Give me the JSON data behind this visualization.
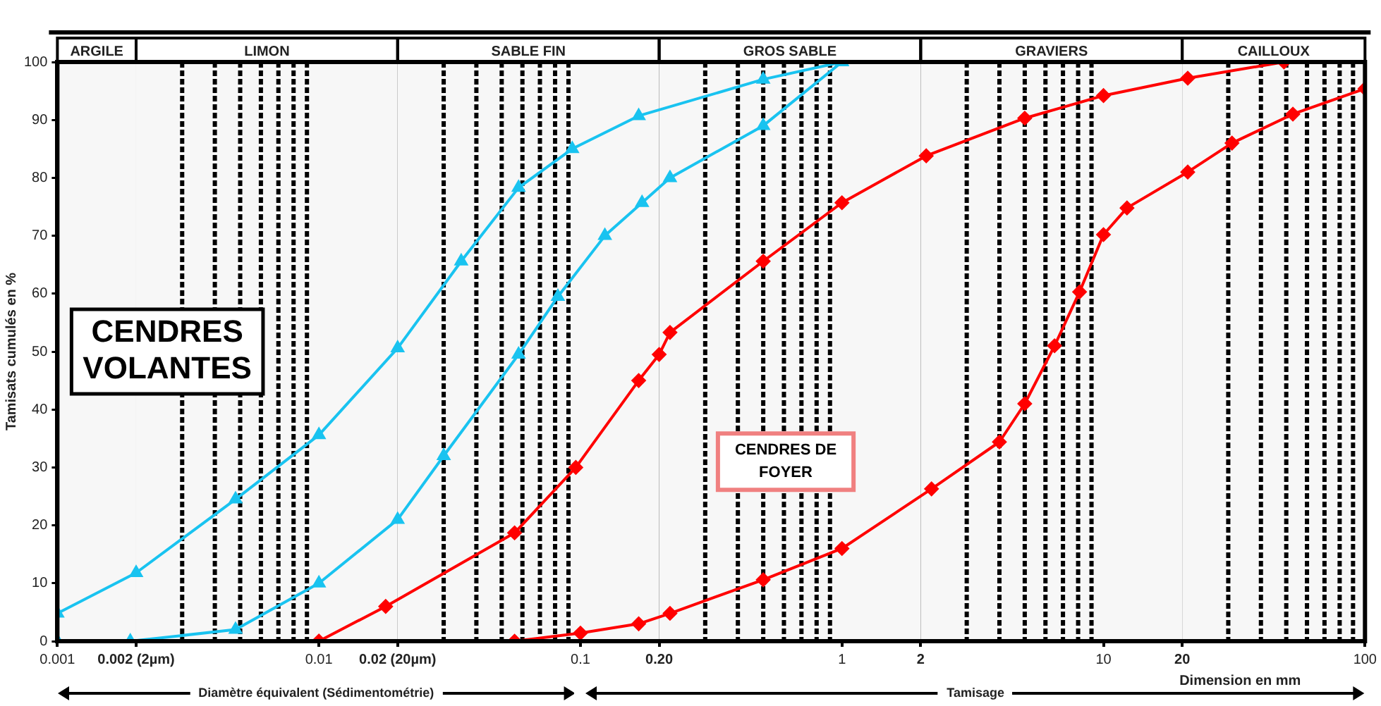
{
  "chart_data": {
    "type": "line",
    "ylabel": "Tamisats cumulés en %",
    "xlabel": "Dimension en mm",
    "log": "x",
    "xlim": [
      0.001,
      100
    ],
    "ylim": [
      0,
      100
    ],
    "xticks": [
      0.001,
      {
        "value": 0.002,
        "label": "0.002 (2µm)"
      },
      0.01,
      {
        "value": 0.02,
        "label": "0.02 (20µm)"
      },
      0.1,
      {
        "value": 0.2,
        "label": "0.20"
      },
      1,
      2,
      10,
      20,
      100
    ],
    "yticks": [
      0,
      10,
      20,
      30,
      40,
      50,
      60,
      70,
      80,
      90,
      100
    ],
    "grid": true,
    "legend": false,
    "series": [
      {
        "color": "#19c3f0",
        "marker": "triangle",
        "x": [
          0.001,
          0.002,
          0.0048,
          0.01,
          0.02,
          0.035,
          0.058,
          0.093,
          0.167,
          0.5,
          1
        ],
        "values": [
          4.8,
          11.8,
          24.5,
          35.6,
          50.6,
          65.6,
          78.3,
          85,
          90.7,
          97,
          100
        ]
      },
      {
        "color": "#19c3f0",
        "marker": "triangle",
        "x": [
          0.001,
          0.0019,
          0.0048,
          0.01,
          0.02,
          0.03,
          0.058,
          0.082,
          0.124,
          0.172,
          0.22,
          0.5,
          1
        ],
        "values": [
          0,
          0,
          2,
          10,
          21,
          32,
          49.5,
          59.5,
          70,
          75.7,
          80,
          89,
          100
        ]
      },
      {
        "color": "#ff0000",
        "marker": "diamond",
        "x": [
          0.01,
          0.018,
          0.056,
          0.096,
          0.167,
          0.2,
          0.22,
          0.5,
          1,
          2.1,
          5,
          10,
          21,
          49
        ],
        "values": [
          0,
          6,
          18.7,
          30,
          45,
          49.5,
          53.3,
          65.6,
          75.7,
          83.8,
          90.3,
          94.2,
          97.2,
          100
        ]
      },
      {
        "color": "#ff0000",
        "marker": "diamond",
        "x": [
          0.01,
          0.056,
          0.1,
          0.167,
          0.22,
          0.5,
          1,
          2.2,
          4,
          5,
          6.5,
          8.1,
          10,
          12.3,
          21,
          31,
          53,
          100
        ],
        "values": [
          0,
          0,
          1.4,
          3,
          4.8,
          10.6,
          16,
          26.3,
          34.4,
          41,
          51,
          60.3,
          70.2,
          74.8,
          81,
          86,
          91,
          95.4
        ]
      }
    ],
    "bands": [
      {
        "axis": "x",
        "from": 0.001,
        "to": 0.002,
        "label": "ARGILE",
        "color": "#f7f7f7"
      },
      {
        "axis": "x",
        "from": 0.002,
        "to": 0.02,
        "label": "LIMON",
        "color": "#f7f7f7"
      },
      {
        "axis": "x",
        "from": 0.02,
        "to": 0.2,
        "label": "SABLE FIN",
        "color": "#f7f7f7"
      },
      {
        "axis": "x",
        "from": 0.2,
        "to": 2,
        "label": "GROS SABLE",
        "color": "#f7f7f7"
      },
      {
        "axis": "x",
        "from": 2,
        "to": 20,
        "label": "GRAVIERS",
        "color": "#f7f7f7"
      },
      {
        "axis": "x",
        "from": 20,
        "to": 100,
        "label": "CAILLOUX",
        "color": "#f7f7f7"
      }
    ],
    "ref_lines": [
      {
        "axis": "x",
        "value": 0.003,
        "color": "#000000",
        "line_style": "dotted"
      },
      {
        "axis": "x",
        "value": 0.004,
        "color": "#000000",
        "line_style": "dotted"
      },
      {
        "axis": "x",
        "value": 0.005,
        "color": "#000000",
        "line_style": "dotted"
      },
      {
        "axis": "x",
        "value": 0.006,
        "color": "#000000",
        "line_style": "dotted"
      },
      {
        "axis": "x",
        "value": 0.007,
        "color": "#000000",
        "line_style": "dotted"
      },
      {
        "axis": "x",
        "value": 0.008,
        "color": "#000000",
        "line_style": "dotted"
      },
      {
        "axis": "x",
        "value": 0.009,
        "color": "#000000",
        "line_style": "dotted"
      },
      {
        "axis": "x",
        "value": 0.03,
        "color": "#000000",
        "line_style": "dotted"
      },
      {
        "axis": "x",
        "value": 0.04,
        "color": "#000000",
        "line_style": "dotted"
      },
      {
        "axis": "x",
        "value": 0.05,
        "color": "#000000",
        "line_style": "dotted"
      },
      {
        "axis": "x",
        "value": 0.06,
        "color": "#000000",
        "line_style": "dotted"
      },
      {
        "axis": "x",
        "value": 0.07,
        "color": "#000000",
        "line_style": "dotted"
      },
      {
        "axis": "x",
        "value": 0.08,
        "color": "#000000",
        "line_style": "dotted"
      },
      {
        "axis": "x",
        "value": 0.09,
        "color": "#000000",
        "line_style": "dotted"
      },
      {
        "axis": "x",
        "value": 0.3,
        "color": "#000000",
        "line_style": "dotted"
      },
      {
        "axis": "x",
        "value": 0.4,
        "color": "#000000",
        "line_style": "dotted"
      },
      {
        "axis": "x",
        "value": 0.5,
        "color": "#000000",
        "line_style": "dotted"
      },
      {
        "axis": "x",
        "value": 0.6,
        "color": "#000000",
        "line_style": "dotted"
      },
      {
        "axis": "x",
        "value": 0.7,
        "color": "#000000",
        "line_style": "dotted"
      },
      {
        "axis": "x",
        "value": 0.8,
        "color": "#000000",
        "line_style": "dotted"
      },
      {
        "axis": "x",
        "value": 0.9,
        "color": "#000000",
        "line_style": "dotted"
      },
      {
        "axis": "x",
        "value": 3,
        "color": "#000000",
        "line_style": "dotted"
      },
      {
        "axis": "x",
        "value": 4,
        "color": "#000000",
        "line_style": "dotted"
      },
      {
        "axis": "x",
        "value": 5,
        "color": "#000000",
        "line_style": "dotted"
      },
      {
        "axis": "x",
        "value": 6,
        "color": "#000000",
        "line_style": "dotted"
      },
      {
        "axis": "x",
        "value": 7,
        "color": "#000000",
        "line_style": "dotted"
      },
      {
        "axis": "x",
        "value": 8,
        "color": "#000000",
        "line_style": "dotted"
      },
      {
        "axis": "x",
        "value": 9,
        "color": "#000000",
        "line_style": "dotted"
      },
      {
        "axis": "x",
        "value": 30,
        "color": "#000000",
        "line_style": "dotted"
      },
      {
        "axis": "x",
        "value": 40,
        "color": "#000000",
        "line_style": "dotted"
      },
      {
        "axis": "x",
        "value": 50,
        "color": "#000000",
        "line_style": "dotted"
      },
      {
        "axis": "x",
        "value": 60,
        "color": "#000000",
        "line_style": "dotted"
      },
      {
        "axis": "x",
        "value": 70,
        "color": "#000000",
        "line_style": "dotted"
      },
      {
        "axis": "x",
        "value": 80,
        "color": "#000000",
        "line_style": "dotted"
      },
      {
        "axis": "x",
        "value": 90,
        "color": "#000000",
        "line_style": "dotted"
      }
    ],
    "annotations": [
      "CENDRES VOLANTES",
      "CENDRES DE FOYER",
      "Diamètre équivalent (Sédimentométrie)",
      "Tamisage"
    ]
  }
}
